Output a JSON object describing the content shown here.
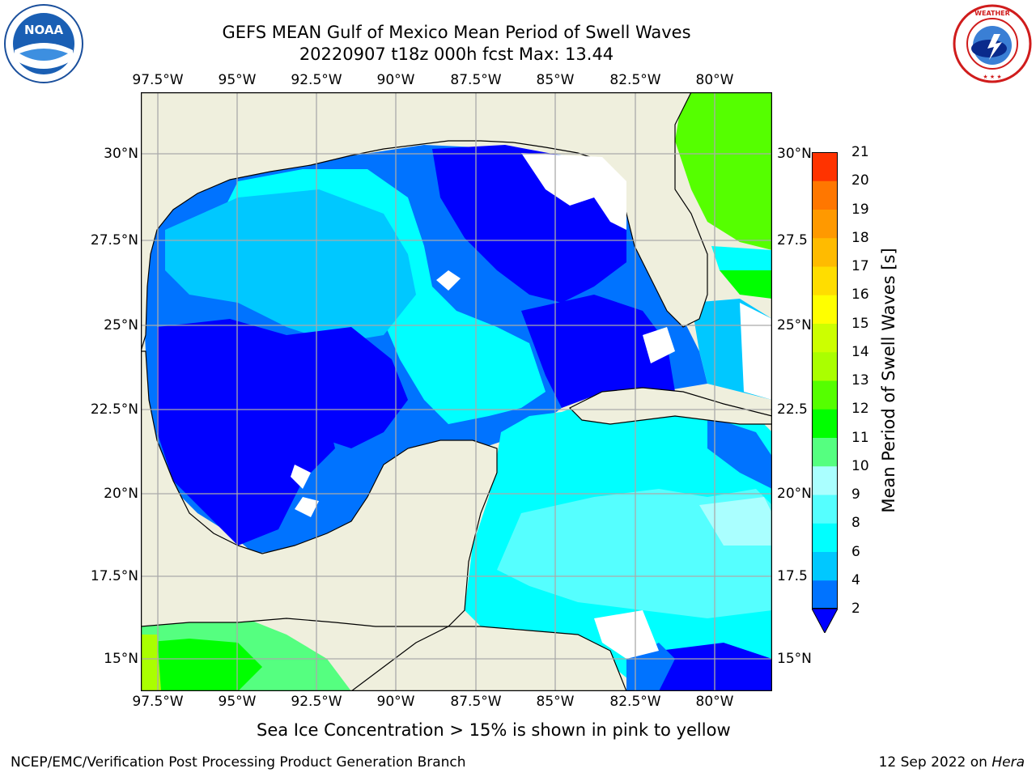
{
  "title": {
    "line1": "GEFS MEAN Gulf of Mexico Mean Period of Swell Waves",
    "line2": "20220907 t18z 000h fcst   Max: 13.44"
  },
  "axes": {
    "lon_labels": [
      "97.5°W",
      "95°W",
      "92.5°W",
      "90°W",
      "87.5°W",
      "85°W",
      "82.5°W",
      "80°W"
    ],
    "lat_labels": [
      "30°N",
      "27.5°N",
      "25°N",
      "22.5°N",
      "20°N",
      "17.5°N",
      "15°N"
    ],
    "lat_labels_right": [
      "30°N",
      "27.5",
      "25°N",
      "22.5",
      "20°N",
      "17.5",
      "15°N"
    ]
  },
  "colorbar": {
    "label": "Mean Period of Swell Waves [s]",
    "ticks": [
      "2",
      "4",
      "6",
      "8",
      "9",
      "10",
      "11",
      "12",
      "13",
      "14",
      "15",
      "16",
      "17",
      "18",
      "19",
      "20",
      "21"
    ],
    "colors": [
      "#0000ff",
      "#0073ff",
      "#00c8ff",
      "#00ffff",
      "#55ffff",
      "#aaffff",
      "#55ff80",
      "#00ff00",
      "#55ff00",
      "#aaff00",
      "#ccff00",
      "#ffff00",
      "#ffdd00",
      "#ffbb00",
      "#ff9900",
      "#ff7700",
      "#ff5500",
      "#ff2200",
      "#ff0000"
    ]
  },
  "map_colors": {
    "land": "#efefdd",
    "no_data": "#ffffff",
    "grid": "#aaaaaa"
  },
  "footnote": "Sea Ice Concentration > 15% is shown in pink to yellow",
  "credit": "NCEP/EMC/Verification Post Processing Product Generation Branch",
  "date": {
    "text": "12 Sep 2022 on ",
    "machine": "Hera"
  },
  "logos": {
    "noaa": {
      "text": "NOAA",
      "icon": "noaa-logo-icon"
    },
    "nws": {
      "text": "NATIONAL WEATHER SERVICE",
      "icon": "nws-logo-icon"
    }
  }
}
